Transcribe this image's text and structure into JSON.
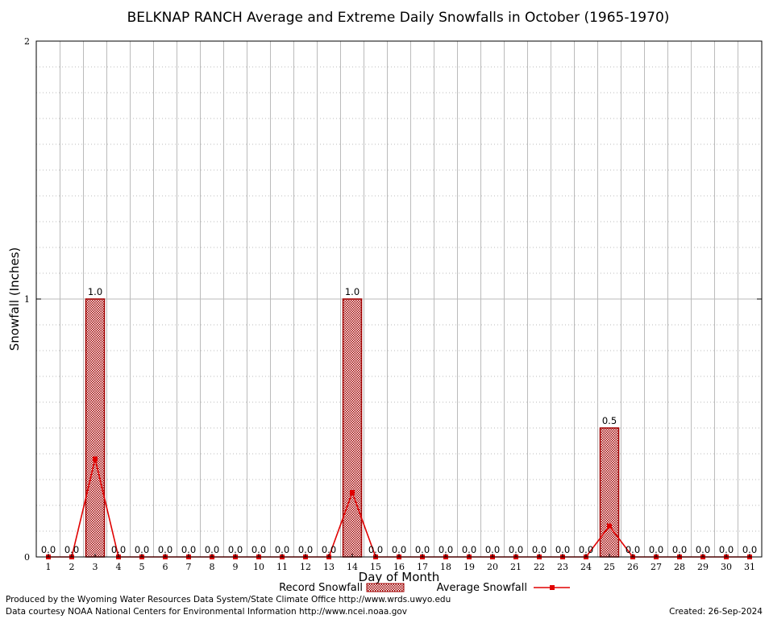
{
  "chart_data": {
    "type": "bar",
    "title": "BELKNAP RANCH Average and Extreme Daily Snowfalls in October (1965-1970)",
    "xlabel": "Day of Month",
    "ylabel": "Snowfall (Inches)",
    "ylim": [
      0,
      2
    ],
    "yticks": [
      "0",
      "1",
      "2"
    ],
    "grid": true,
    "legend_position": "bottom",
    "categories": [
      "1",
      "2",
      "3",
      "4",
      "5",
      "6",
      "7",
      "8",
      "9",
      "10",
      "11",
      "12",
      "13",
      "14",
      "15",
      "16",
      "17",
      "18",
      "19",
      "20",
      "21",
      "22",
      "23",
      "24",
      "25",
      "26",
      "27",
      "28",
      "29",
      "30",
      "31"
    ],
    "series": [
      {
        "name": "Record Snowfall",
        "kind": "bar",
        "values": [
          0,
          0,
          1.0,
          0,
          0,
          0,
          0,
          0,
          0,
          0,
          0,
          0,
          0,
          1.0,
          0,
          0,
          0,
          0,
          0,
          0,
          0,
          0,
          0,
          0,
          0.5,
          0,
          0,
          0,
          0,
          0,
          0
        ],
        "labels": [
          "0.0",
          "0.0",
          "1.0",
          "0.0",
          "0.0",
          "0.0",
          "0.0",
          "0.0",
          "0.0",
          "0.0",
          "0.0",
          "0.0",
          "0.0",
          "1.0",
          "0.0",
          "0.0",
          "0.0",
          "0.0",
          "0.0",
          "0.0",
          "0.0",
          "0.0",
          "0.0",
          "0.0",
          "0.5",
          "0.0",
          "0.0",
          "0.0",
          "0.0",
          "0.0",
          "0.0"
        ]
      },
      {
        "name": "Average Snowfall",
        "kind": "line",
        "values": [
          0,
          0,
          0.38,
          0,
          0,
          0,
          0,
          0,
          0,
          0,
          0,
          0,
          0,
          0.25,
          0,
          0,
          0,
          0,
          0,
          0,
          0,
          0,
          0,
          0,
          0.12,
          0,
          0,
          0,
          0,
          0,
          0
        ]
      }
    ],
    "colors": {
      "bar_fill": "#c8b8b8",
      "bar_edge": "#a00000",
      "line": "#e00000",
      "grid": "#bbbbbb"
    }
  },
  "footer": {
    "left_line1": "Produced by the Wyoming Water Resources Data System/State Climate Office http://www.wrds.uwyo.edu",
    "left_line2": "Data courtesy NOAA National Centers for Environmental Information http://www.ncei.noaa.gov",
    "created": "Created:  26-Sep-2024"
  }
}
